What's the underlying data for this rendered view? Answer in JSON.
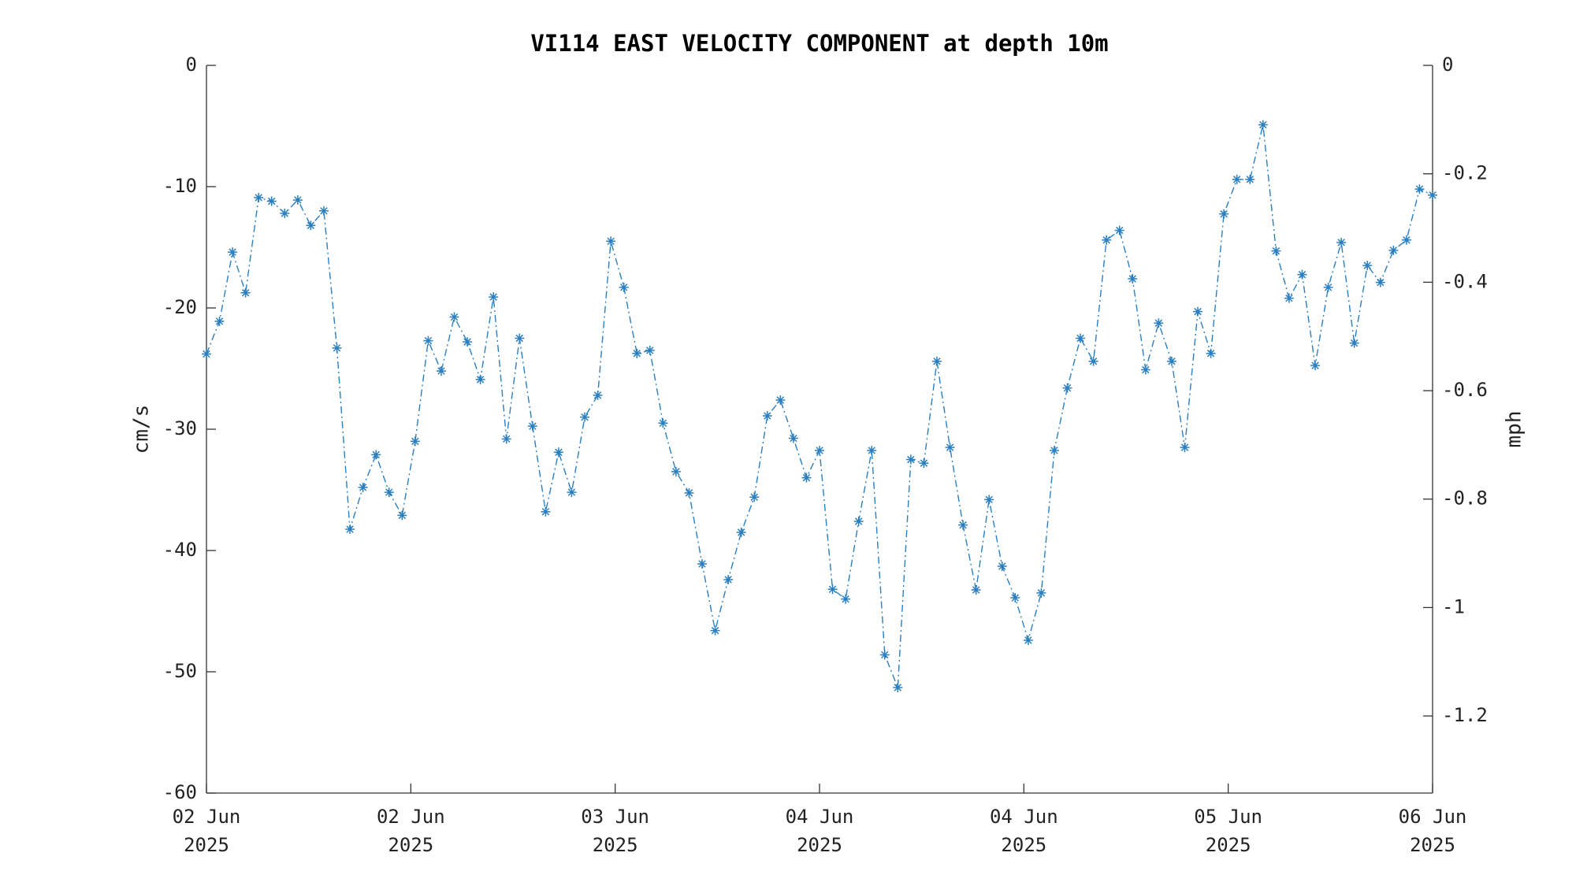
{
  "chart_data": {
    "type": "line",
    "title": "VI114 EAST VELOCITY COMPONENT at depth 10m",
    "ylabel": "cm/s",
    "y2label": "mph",
    "series": [
      {
        "name": "East velocity",
        "color": "#2a7fc1",
        "values": [
          -23.8,
          -21.1,
          -15.4,
          -18.75,
          -10.9,
          -11.2,
          -12.2,
          -11.1,
          -13.2,
          -12,
          -23.3,
          -38.25,
          -34.8,
          -32.1,
          -35.2,
          -37.1,
          -31,
          -22.7,
          -25.2,
          -20.75,
          -22.8,
          -25.9,
          -19.1,
          -30.8,
          -22.5,
          -29.75,
          -36.8,
          -31.9,
          -35.2,
          -29,
          -27.2,
          -14.5,
          -18.3,
          -23.75,
          -23.5,
          -29.5,
          -33.5,
          -35.25,
          -41.1,
          -46.6,
          -42.4,
          -38.5,
          -35.6,
          -28.9,
          -27.6,
          -30.75,
          -34,
          -31.75,
          -43.2,
          -44,
          -37.6,
          -31.75,
          -48.6,
          -51.3,
          -32.5,
          -32.8,
          -24.4,
          -31.5,
          -37.9,
          -43.25,
          -35.8,
          -41.3,
          -43.9,
          -47.4,
          -43.5,
          -31.75,
          -26.6,
          -22.5,
          -24.4,
          -14.4,
          -13.6,
          -17.6,
          -25.1,
          -21.25,
          -24.4,
          -31.5,
          -20.3,
          -23.75,
          -12.25,
          -9.4,
          -9.4,
          -4.9,
          -15.3,
          -19.2,
          -17.25,
          -24.75,
          -18.3,
          -14.6,
          -22.9,
          -16.5,
          -17.9,
          -15.25,
          -14.4,
          -10.2,
          -10.7
        ]
      }
    ],
    "ylim": [
      -60,
      0
    ],
    "yticks": [
      -60,
      -50,
      -40,
      -30,
      -20,
      -10,
      0
    ],
    "y2lim": [
      -1.3422,
      0
    ],
    "y2ticks": [
      -1.2,
      -1,
      -0.8,
      -0.6,
      -0.4,
      -0.2,
      0
    ],
    "xticks": [
      "02 Jun 2025",
      "02 Jun 2025",
      "03 Jun 2025",
      "04 Jun 2025",
      "04 Jun 2025",
      "05 Jun 2025",
      "06 Jun 2025"
    ],
    "marker": "*",
    "line_style": "dash-dot"
  }
}
